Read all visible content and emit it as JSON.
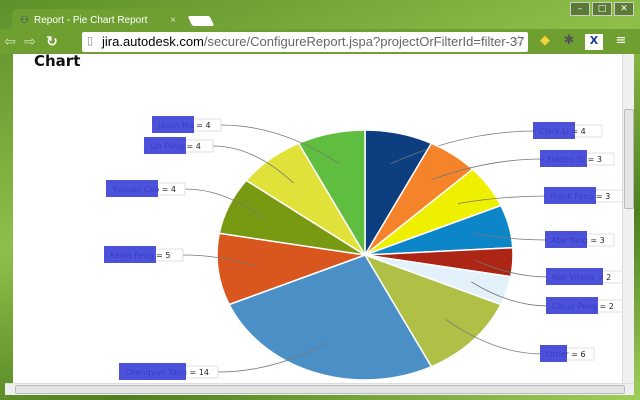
{
  "browser": {
    "tab_title": "Report - Pie Chart Report",
    "tab_close": "×",
    "url_domain": "jira.autodesk.com",
    "url_path": "/secure/ConfigureReport.jspa?projectOrFilterId=filter-37",
    "window_buttons": [
      "–",
      "□",
      "✕"
    ],
    "icons": [
      "back-icon",
      "forward-icon",
      "reload-icon",
      "page-icon",
      "star-icon",
      "python-extension-icon",
      "puzzle-extension-icon",
      "x-extension-icon",
      "menu-icon"
    ]
  },
  "page": {
    "heading": "Chart"
  },
  "chart_data": {
    "type": "pie",
    "title": "",
    "start": "top",
    "direction": "clockwise",
    "redaction_color": "#3a3fd6",
    "slices": [
      {
        "label": "Clark Li = 4",
        "value": 4,
        "color": "#0d3f80"
      },
      {
        "label": "Xiaobo Yu = 3",
        "value": 3,
        "color": "#f5832a"
      },
      {
        "label": "Frank Fang = 3",
        "value": 3,
        "color": "#eef000"
      },
      {
        "label": "Abe Yang = 3",
        "value": 3,
        "color": "#0c86c8"
      },
      {
        "label": "Ken Vitella = 2",
        "value": 2,
        "color": "#ad2515"
      },
      {
        "label": "Cloud Peng = 2",
        "value": 2,
        "color": "#e3f1fa"
      },
      {
        "label": "Other = 6",
        "value": 6,
        "color": "#b0c046"
      },
      {
        "label": "Chengyun Yang = 14",
        "value": 14,
        "color": "#4a90c6"
      },
      {
        "label": "Kevin Feng = 5",
        "value": 5,
        "color": "#d9561e"
      },
      {
        "label": "Yuquan Cao = 4",
        "value": 4,
        "color": "#789a12"
      },
      {
        "label": "Lin Peng = 4",
        "value": 4,
        "color": "#e0e23a"
      },
      {
        "label": "Jason Ma = 4",
        "value": 4,
        "color": "#5fbe3f"
      }
    ]
  }
}
